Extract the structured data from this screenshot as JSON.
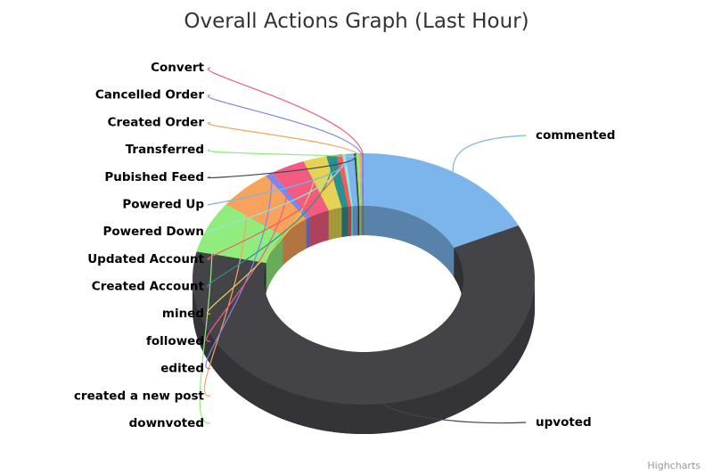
{
  "chart_data": {
    "type": "pie",
    "variant": "3d-donut",
    "title": "Overall Actions Graph (Last Hour)",
    "credits": "Highcharts",
    "slices": [
      {
        "name": "commented",
        "value": 18.0,
        "color": "#7cb5ec"
      },
      {
        "name": "upvoted",
        "value": 60.5,
        "color": "#434348"
      },
      {
        "name": "downvoted",
        "value": 6.6,
        "color": "#90ed7d"
      },
      {
        "name": "created a new post",
        "value": 5.2,
        "color": "#f7a35c"
      },
      {
        "name": "edited",
        "value": 0.7,
        "color": "#8085e9"
      },
      {
        "name": "followed",
        "value": 3.3,
        "color": "#f15c80"
      },
      {
        "name": "mined",
        "value": 2.2,
        "color": "#e4d354"
      },
      {
        "name": "Created Account",
        "value": 1.0,
        "color": "#2b908f"
      },
      {
        "name": "Updated Account",
        "value": 0.5,
        "color": "#f45b5b"
      },
      {
        "name": "Powered Down",
        "value": 0.3,
        "color": "#91e8e1"
      },
      {
        "name": "Powered Up",
        "value": 0.8,
        "color": "#7cb5ec"
      },
      {
        "name": "Pubished Feed",
        "value": 0.2,
        "color": "#434348"
      },
      {
        "name": "Transferred",
        "value": 0.3,
        "color": "#90ed7d"
      },
      {
        "name": "Created Order",
        "value": 0.2,
        "color": "#f7a35c"
      },
      {
        "name": "Cancelled Order",
        "value": 0.1,
        "color": "#8085e9"
      },
      {
        "name": "Convert",
        "value": 0.1,
        "color": "#f15c80"
      }
    ]
  }
}
